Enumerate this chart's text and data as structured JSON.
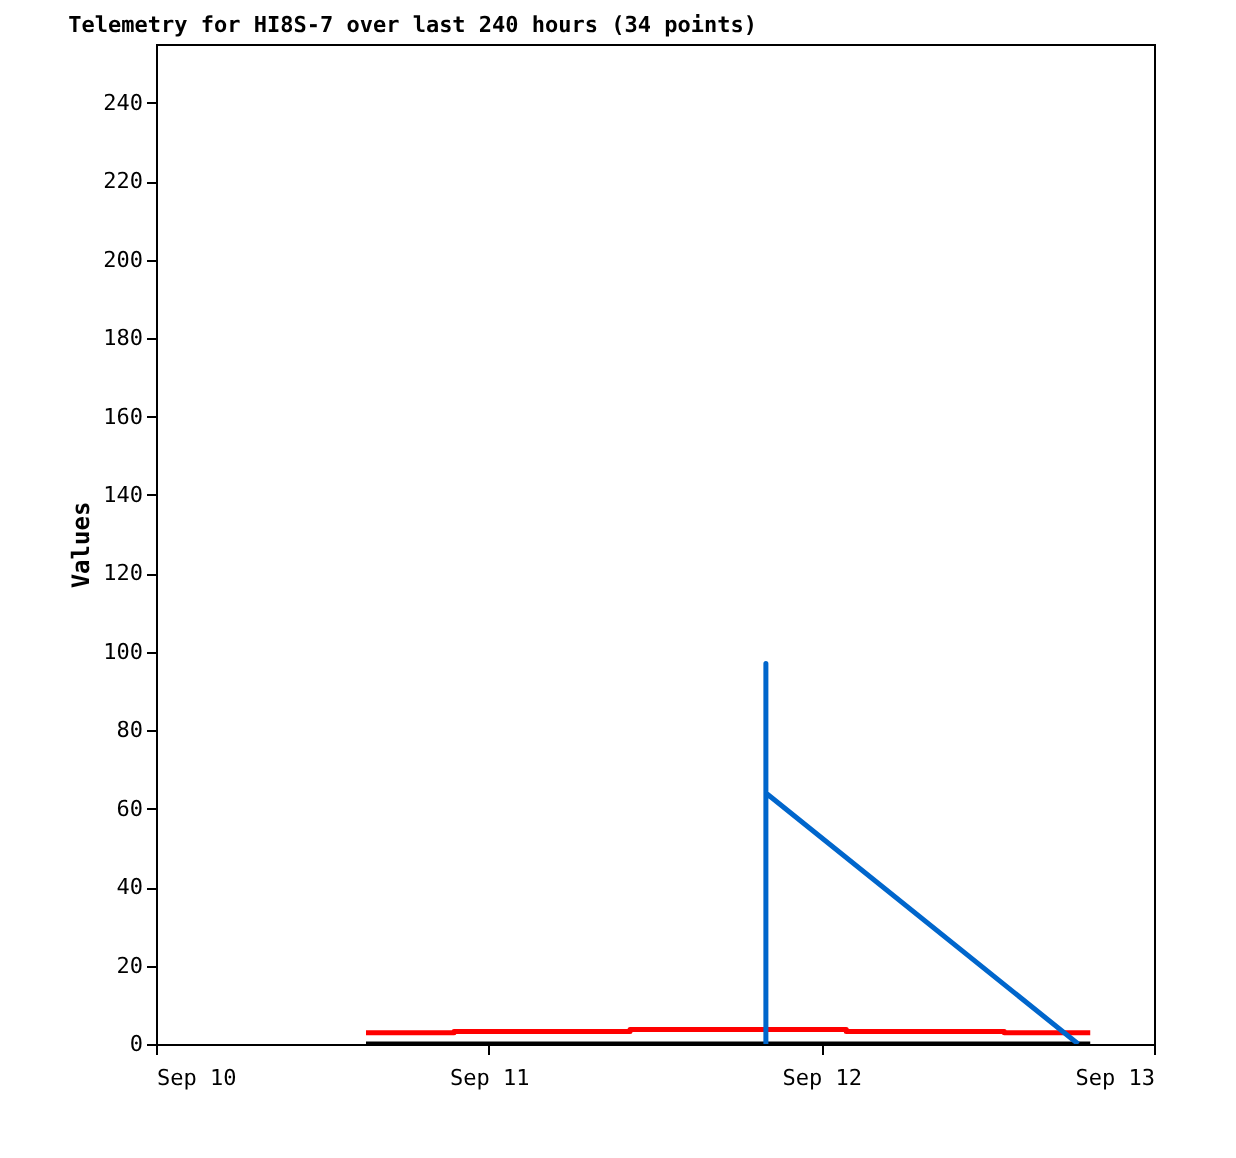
{
  "chart_data": {
    "type": "line",
    "title": "Telemetry for HI8S-7 over last 240 hours (34 points)",
    "ylabel": "Values",
    "xlim": [
      "--09-10",
      "--09-13"
    ],
    "xticks": [
      {
        "value": "--09-10",
        "label": "Sep 10"
      },
      {
        "value": "--09-11",
        "label": "Sep 11"
      },
      {
        "value": "--09-12",
        "label": "Sep 12"
      },
      {
        "value": "--09-13",
        "label": "Sep 13"
      }
    ],
    "ylim": [
      0,
      255
    ],
    "yticks": [
      0,
      20,
      40,
      60,
      80,
      100,
      120,
      140,
      160,
      180,
      200,
      220,
      240
    ],
    "series": [
      {
        "color": "#000000",
        "x": [
          "--09-10T15:09",
          "--09-12T19:24"
        ],
        "values": [
          0,
          0
        ]
      },
      {
        "type": "step",
        "color": "#ff0000",
        "x": [
          "--09-10T15:09",
          "--09-10T21:30",
          "--09-11T10:12",
          "--09-12T01:48",
          "--09-12T13:12",
          "--09-12T19:24"
        ],
        "values": [
          2.9,
          3.2,
          3.7,
          3.2,
          2.9,
          2.9
        ]
      },
      {
        "color": "#0066cc",
        "x": [
          "--09-11T20:00",
          "--09-11T20:00",
          "--09-11T20:00",
          "--09-12T18:32"
        ],
        "values": [
          0,
          97,
          64,
          0
        ]
      }
    ]
  }
}
